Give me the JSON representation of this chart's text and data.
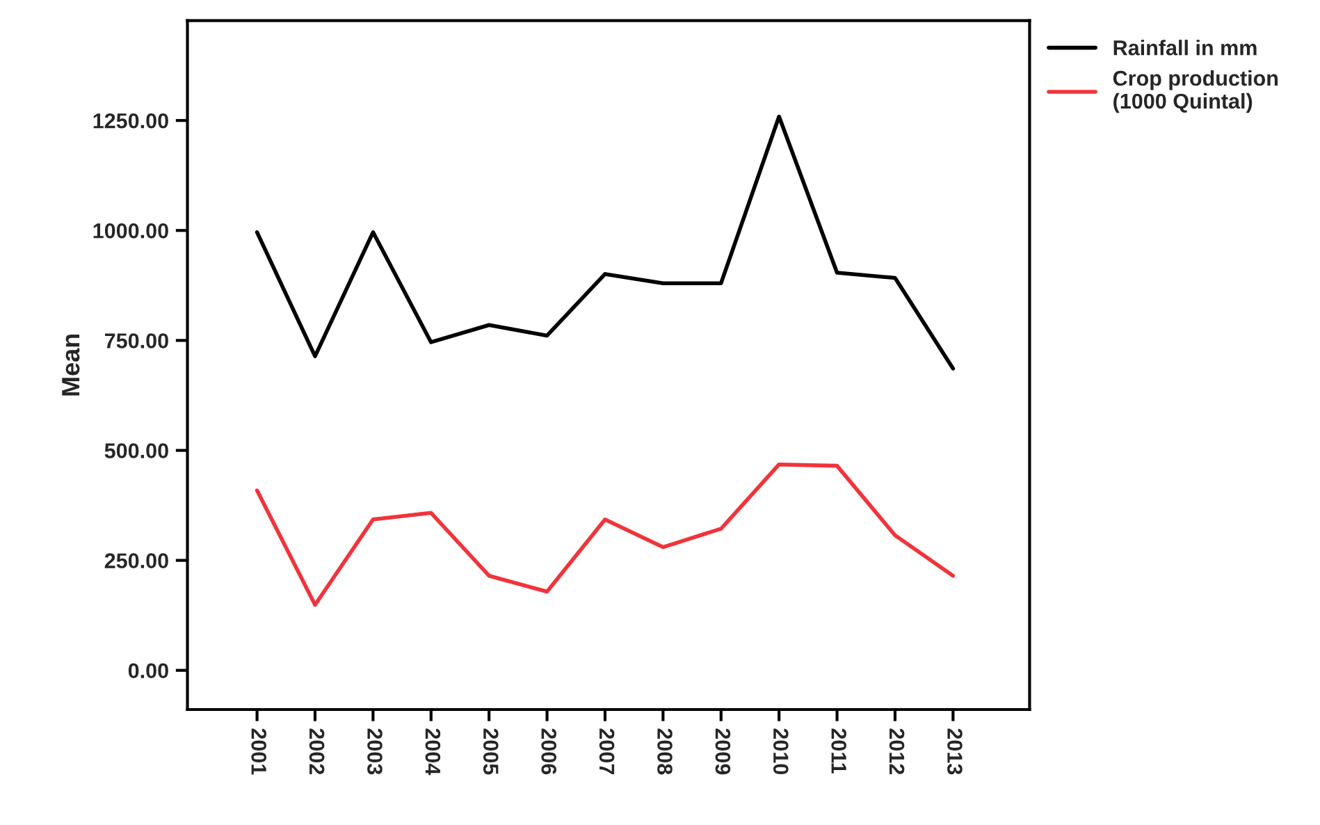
{
  "chart_data": {
    "type": "line",
    "ylabel": "Mean",
    "categories": [
      "2001",
      "2002",
      "2003",
      "2004",
      "2005",
      "2006",
      "2007",
      "2008",
      "2009",
      "2010",
      "2011",
      "2012",
      "2013"
    ],
    "series": [
      {
        "name": "Rainfall in mm",
        "color": "#000000",
        "values": [
          996,
          714,
          996,
          746,
          785,
          761,
          901,
          880,
          880,
          1259,
          904,
          892,
          686
        ]
      },
      {
        "name": "Crop production\n(1000 Quintal)",
        "color": "#f0343c",
        "values": [
          409,
          149,
          343,
          358,
          215,
          179,
          343,
          280,
          322,
          468,
          465,
          307,
          215
        ]
      }
    ],
    "ylim": [
      -89,
      1477
    ],
    "yticks": [
      {
        "value": 0,
        "label": "0.00"
      },
      {
        "value": 250,
        "label": "250.00"
      },
      {
        "value": 500,
        "label": "500.00"
      },
      {
        "value": 750,
        "label": "750.00"
      },
      {
        "value": 1000,
        "label": "1000.00"
      },
      {
        "value": 1250,
        "label": "1250.00"
      }
    ],
    "grid": false,
    "legend": "top right",
    "line_style": "solid"
  }
}
